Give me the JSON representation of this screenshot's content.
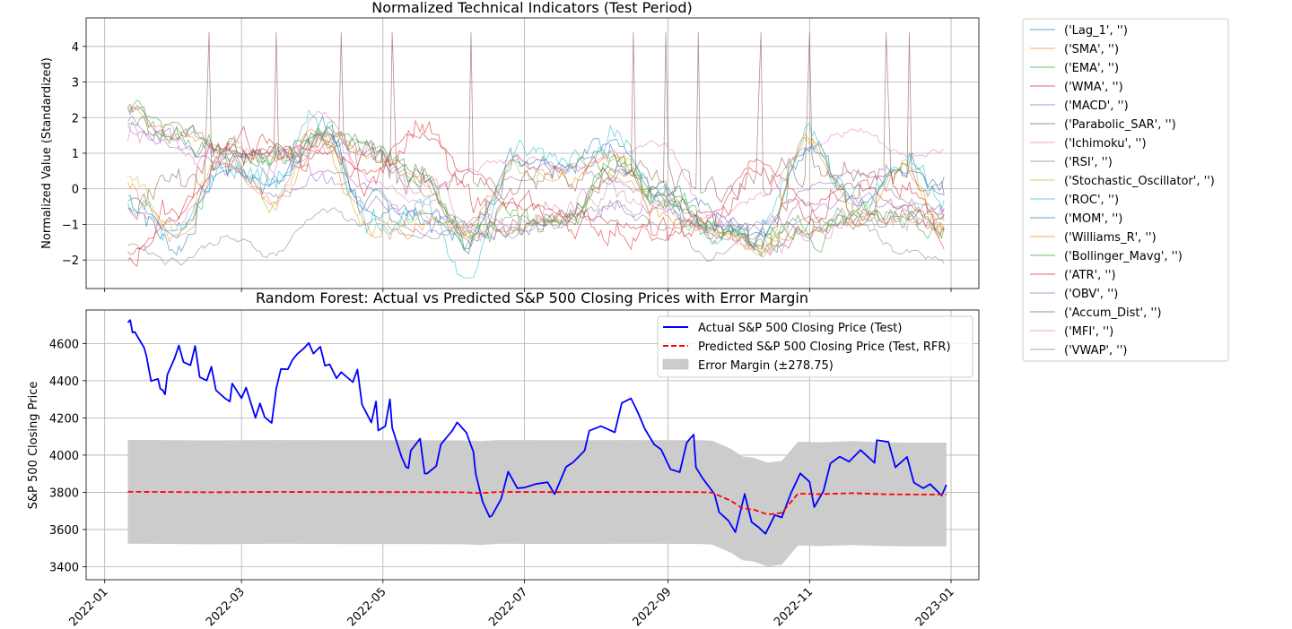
{
  "chart_data": [
    {
      "type": "line",
      "title": "Normalized Technical Indicators (Test Period)",
      "xlabel": "",
      "ylabel": "Normalized Value (Standardized)",
      "ylim": [
        -2.8,
        4.8
      ],
      "yticks": [
        -2,
        -1,
        0,
        1,
        2,
        3,
        4
      ],
      "ytick_labels": [
        "−2",
        "−1",
        "0",
        "1",
        "2",
        "3",
        "4"
      ],
      "xlim": [
        "2021-12-24",
        "2023-01-13"
      ],
      "grid": true,
      "legend_position": "outside right",
      "x": [
        "2022-01-11",
        "2022-02-01",
        "2022-02-22",
        "2022-03-15",
        "2022-04-05",
        "2022-04-26",
        "2022-05-17",
        "2022-06-07",
        "2022-06-28",
        "2022-07-19",
        "2022-08-09",
        "2022-08-30",
        "2022-09-20",
        "2022-10-11",
        "2022-11-01",
        "2022-11-22",
        "2022-12-13",
        "2022-12-30"
      ],
      "series": [
        {
          "name": "('Lag_1', '')",
          "color": "#1f77b4",
          "values": [
            -0.2,
            -1.6,
            0.8,
            0.2,
            1.7,
            -0.6,
            -0.8,
            -1.4,
            1.0,
            0.9,
            1.2,
            -0.3,
            -0.9,
            -1.4,
            1.3,
            -0.5,
            0.9,
            0.1
          ]
        },
        {
          "name": "('SMA', '')",
          "color": "#ff7f0e",
          "values": [
            2.2,
            1.5,
            1.2,
            0.8,
            1.7,
            1.0,
            0.2,
            -1.2,
            -1.0,
            -0.9,
            0.4,
            -0.2,
            -1.2,
            -1.6,
            -1.1,
            -0.8,
            -0.9,
            -1.1
          ]
        },
        {
          "name": "('EMA', '')",
          "color": "#2ca02c",
          "values": [
            2.3,
            1.6,
            1.3,
            0.9,
            1.6,
            1.0,
            0.3,
            -1.1,
            -1.0,
            -0.8,
            0.5,
            -0.1,
            -1.1,
            -1.5,
            -1.0,
            -0.7,
            -0.8,
            -1.0
          ]
        },
        {
          "name": "('WMA', '')",
          "color": "#d62728",
          "values": [
            -1.9,
            -0.5,
            1.4,
            1.1,
            0.8,
            0.2,
            1.9,
            -0.3,
            -0.6,
            -0.9,
            -1.1,
            -1.3,
            -1.0,
            0.4,
            -0.6,
            0.3,
            -0.2,
            -1.1
          ]
        },
        {
          "name": "('MACD', '')",
          "color": "#9467bd",
          "values": [
            1.7,
            1.2,
            0.6,
            -0.2,
            0.4,
            0.1,
            -1.2,
            -1.0,
            0.4,
            0.6,
            0.3,
            -0.5,
            -1.3,
            -1.0,
            0.1,
            0.5,
            -0.3,
            -0.6
          ]
        },
        {
          "name": "('Parabolic_SAR', '')",
          "color": "#8c564b",
          "values": [
            2.2,
            1.6,
            1.2,
            0.8,
            1.5,
            1.1,
            0.4,
            -1.3,
            -1.0,
            -0.9,
            0.4,
            0.0,
            -1.0,
            -1.7,
            -1.2,
            -0.8,
            -0.7,
            -1.0
          ]
        },
        {
          "name": "('Ichimoku', '')",
          "color": "#e377c2",
          "values": [
            1.6,
            1.3,
            1.0,
            0.7,
            1.4,
            0.9,
            0.0,
            -0.9,
            -0.8,
            -0.6,
            0.2,
            -0.3,
            -1.2,
            -1.5,
            -1.0,
            -0.6,
            -0.8,
            -0.9
          ]
        },
        {
          "name": "('RSI', '')",
          "color": "#7f7f7f",
          "values": [
            -1.5,
            -2.0,
            -1.4,
            -1.8,
            -0.6,
            -1.0,
            -1.4,
            -1.2,
            -0.9,
            -0.8,
            -0.5,
            -1.0,
            -1.9,
            -1.3,
            -0.9,
            -1.0,
            -1.8,
            -2.1
          ]
        },
        {
          "name": "('Stochastic_Oscillator', '')",
          "color": "#bcbd22",
          "values": [
            0.3,
            -1.2,
            1.0,
            -0.4,
            1.5,
            -1.1,
            -0.9,
            -1.2,
            0.6,
            0.4,
            1.1,
            -0.6,
            -1.2,
            -1.6,
            1.4,
            -0.7,
            0.7,
            -1.2
          ]
        },
        {
          "name": "('ROC', '')",
          "color": "#17becf",
          "values": [
            -0.2,
            -1.4,
            0.6,
            0.3,
            1.9,
            -0.8,
            -0.6,
            -2.3,
            0.9,
            1.0,
            1.5,
            -0.4,
            -1.5,
            -1.2,
            1.6,
            -0.2,
            0.8,
            0.0
          ]
        },
        {
          "name": "('MOM', '')",
          "color": "#1f77b4",
          "values": [
            -0.3,
            -1.3,
            0.5,
            0.1,
            1.6,
            -0.7,
            -0.7,
            -1.6,
            0.8,
            0.7,
            1.3,
            -0.3,
            -1.1,
            -1.3,
            1.2,
            -0.4,
            0.6,
            -0.1
          ]
        },
        {
          "name": "('Williams_R', '')",
          "color": "#ff7f0e",
          "values": [
            0.2,
            -1.5,
            0.9,
            -0.5,
            1.4,
            -1.2,
            -1.0,
            -1.3,
            0.7,
            0.3,
            1.0,
            -0.7,
            -1.3,
            -1.7,
            1.3,
            -0.8,
            0.6,
            -1.3
          ]
        },
        {
          "name": "('Bollinger_Mavg', '')",
          "color": "#2ca02c",
          "values": [
            2.1,
            1.5,
            1.2,
            0.8,
            1.6,
            1.0,
            0.3,
            -1.2,
            -1.0,
            -0.8,
            0.4,
            -0.1,
            -1.1,
            -1.6,
            -1.1,
            -0.8,
            -0.8,
            -1.0
          ]
        },
        {
          "name": "('ATR', '')",
          "color": "#d62728",
          "values": [
            -1.8,
            -0.8,
            0.9,
            1.2,
            1.0,
            0.5,
            1.6,
            0.4,
            -0.4,
            -0.7,
            -0.9,
            -1.4,
            -0.6,
            0.8,
            -0.4,
            0.0,
            -0.5,
            -1.2
          ]
        },
        {
          "name": "('OBV', '')",
          "color": "#9467bd",
          "values": [
            1.8,
            1.4,
            1.1,
            0.9,
            0.3,
            -0.3,
            -0.6,
            -1.2,
            -1.0,
            -0.7,
            -0.5,
            -0.6,
            -1.0,
            -1.1,
            -0.6,
            -0.3,
            -0.4,
            -0.7
          ]
        },
        {
          "name": "('Accum_Dist', '')",
          "color": "#8c564b",
          "values": [
            -0.3,
            0.2,
            0.6,
            1.0,
            1.3,
            0.9,
            0.2,
            0.1,
            0.3,
            0.5,
            0.6,
            0.3,
            0.0,
            0.2,
            0.5,
            0.6,
            0.3,
            0.1
          ]
        },
        {
          "name": "('MFI', '')",
          "color": "#e377c2",
          "values": [
            -0.6,
            -1.0,
            0.7,
            -0.3,
            2.2,
            0.3,
            -0.4,
            0.6,
            0.8,
            0.6,
            1.0,
            1.3,
            -0.8,
            -0.2,
            1.3,
            1.6,
            0.9,
            1.1
          ]
        },
        {
          "name": "('VWAP', '')",
          "color": "#7f7f7f",
          "values": [
            2.2,
            1.5,
            1.1,
            0.8,
            1.6,
            1.0,
            0.2,
            -1.2,
            -1.0,
            -0.8,
            0.4,
            -0.1,
            -1.2,
            -1.6,
            -1.1,
            -0.7,
            -0.8,
            -1.0
          ]
        }
      ],
      "spike_series": {
        "name": "('Accum_Dist', '')",
        "color": "#8c564b",
        "dates": [
          "2022-02-15",
          "2022-03-17",
          "2022-04-14",
          "2022-05-06",
          "2022-06-09",
          "2022-08-18",
          "2022-09-01",
          "2022-09-15",
          "2022-10-11",
          "2022-11-01",
          "2022-12-05",
          "2022-12-14"
        ],
        "values": [
          4.4,
          4.4,
          4.4,
          4.4,
          4.4,
          4.4,
          4.4,
          4.4,
          4.4,
          4.4,
          4.4,
          4.4
        ]
      },
      "legend_items": [
        "('Lag_1', '')",
        "('SMA', '')",
        "('EMA', '')",
        "('WMA', '')",
        "('MACD', '')",
        "('Parabolic_SAR', '')",
        "('Ichimoku', '')",
        "('RSI', '')",
        "('Stochastic_Oscillator', '')",
        "('ROC', '')",
        "('MOM', '')",
        "('Williams_R', '')",
        "('Bollinger_Mavg', '')",
        "('ATR', '')",
        "('OBV', '')",
        "('Accum_Dist', '')",
        "('MFI', '')",
        "('VWAP', '')"
      ]
    },
    {
      "type": "line",
      "title": "Random Forest: Actual vs Predicted S&P 500 Closing Prices with Error Margin",
      "xlabel": "",
      "ylabel": "S&P 500 Closing Price",
      "ylim": [
        3330,
        4780
      ],
      "yticks": [
        3400,
        3600,
        3800,
        4000,
        4200,
        4400,
        4600
      ],
      "xlim": [
        "2021-12-24",
        "2023-01-13"
      ],
      "xticks": [
        "2022-01-01",
        "2022-03-01",
        "2022-05-01",
        "2022-07-01",
        "2022-09-01",
        "2022-11-01",
        "2023-01-01"
      ],
      "xtick_labels": [
        "2022-01",
        "2022-03",
        "2022-05",
        "2022-07",
        "2022-09",
        "2022-11",
        "2023-01"
      ],
      "grid": true,
      "legend_position": "upper right",
      "error_margin": 278.75,
      "series": [
        {
          "name": "Actual S&P 500 Closing Price (Test)",
          "color": "#0000ff",
          "style": "solid",
          "x": [
            "2022-01-11",
            "2022-01-12",
            "2022-01-13",
            "2022-01-14",
            "2022-01-18",
            "2022-01-19",
            "2022-01-21",
            "2022-01-24",
            "2022-01-25",
            "2022-01-26",
            "2022-01-27",
            "2022-01-28",
            "2022-01-31",
            "2022-02-02",
            "2022-02-04",
            "2022-02-07",
            "2022-02-09",
            "2022-02-11",
            "2022-02-14",
            "2022-02-16",
            "2022-02-18",
            "2022-02-22",
            "2022-02-24",
            "2022-02-25",
            "2022-03-01",
            "2022-03-03",
            "2022-03-07",
            "2022-03-09",
            "2022-03-11",
            "2022-03-14",
            "2022-03-16",
            "2022-03-18",
            "2022-03-21",
            "2022-03-23",
            "2022-03-25",
            "2022-03-28",
            "2022-03-30",
            "2022-04-01",
            "2022-04-04",
            "2022-04-06",
            "2022-04-08",
            "2022-04-11",
            "2022-04-13",
            "2022-04-18",
            "2022-04-20",
            "2022-04-22",
            "2022-04-26",
            "2022-04-28",
            "2022-04-29",
            "2022-05-02",
            "2022-05-04",
            "2022-05-05",
            "2022-05-09",
            "2022-05-11",
            "2022-05-12",
            "2022-05-13",
            "2022-05-17",
            "2022-05-19",
            "2022-05-20",
            "2022-05-24",
            "2022-05-26",
            "2022-05-31",
            "2022-06-02",
            "2022-06-06",
            "2022-06-09",
            "2022-06-10",
            "2022-06-13",
            "2022-06-16",
            "2022-06-17",
            "2022-06-21",
            "2022-06-24",
            "2022-06-28",
            "2022-07-01",
            "2022-07-06",
            "2022-07-11",
            "2022-07-14",
            "2022-07-19",
            "2022-07-22",
            "2022-07-27",
            "2022-07-29",
            "2022-08-03",
            "2022-08-05",
            "2022-08-09",
            "2022-08-12",
            "2022-08-16",
            "2022-08-19",
            "2022-08-22",
            "2022-08-26",
            "2022-08-29",
            "2022-09-02",
            "2022-09-06",
            "2022-09-09",
            "2022-09-12",
            "2022-09-13",
            "2022-09-16",
            "2022-09-21",
            "2022-09-23",
            "2022-09-27",
            "2022-09-30",
            "2022-10-04",
            "2022-10-07",
            "2022-10-10",
            "2022-10-13",
            "2022-10-17",
            "2022-10-20",
            "2022-10-24",
            "2022-10-28",
            "2022-11-01",
            "2022-11-03",
            "2022-11-07",
            "2022-11-10",
            "2022-11-14",
            "2022-11-18",
            "2022-11-23",
            "2022-11-29",
            "2022-11-30",
            "2022-12-05",
            "2022-12-08",
            "2022-12-13",
            "2022-12-16",
            "2022-12-20",
            "2022-12-23",
            "2022-12-28",
            "2022-12-30"
          ],
          "values": [
            4713,
            4726,
            4659,
            4662,
            4577,
            4533,
            4398,
            4410,
            4356,
            4350,
            4326,
            4432,
            4516,
            4589,
            4500,
            4483,
            4587,
            4419,
            4401,
            4475,
            4349,
            4304,
            4288,
            4385,
            4306,
            4363,
            4201,
            4278,
            4204,
            4173,
            4358,
            4463,
            4461,
            4512,
            4543,
            4575,
            4603,
            4546,
            4583,
            4481,
            4488,
            4413,
            4446,
            4392,
            4460,
            4272,
            4175,
            4288,
            4132,
            4155,
            4300,
            4147,
            3991,
            3935,
            3930,
            4023,
            4088,
            3901,
            3901,
            3941,
            4058,
            4133,
            4176,
            4121,
            4018,
            3900,
            3749,
            3667,
            3675,
            3765,
            3911,
            3822,
            3825,
            3845,
            3854,
            3790,
            3937,
            3961,
            4024,
            4131,
            4155,
            4145,
            4122,
            4280,
            4305,
            4228,
            4140,
            4057,
            4030,
            3924,
            3908,
            4067,
            4110,
            3933,
            3873,
            3790,
            3693,
            3647,
            3586,
            3791,
            3640,
            3612,
            3577,
            3678,
            3665,
            3797,
            3902,
            3856,
            3720,
            3807,
            3956,
            3992,
            3965,
            4027,
            3958,
            4080,
            4071,
            3934,
            3990,
            3852,
            3822,
            3844,
            3783,
            3840
          ]
        },
        {
          "name": "Predicted S&P 500 Closing Price (Test, RFR)",
          "color": "#ff0000",
          "style": "dashed",
          "x": [
            "2022-01-11",
            "2022-02-15",
            "2022-03-15",
            "2022-04-15",
            "2022-05-15",
            "2022-06-05",
            "2022-06-12",
            "2022-06-20",
            "2022-07-15",
            "2022-08-15",
            "2022-09-15",
            "2022-09-20",
            "2022-09-28",
            "2022-10-03",
            "2022-10-08",
            "2022-10-14",
            "2022-10-20",
            "2022-10-27",
            "2022-11-05",
            "2022-11-20",
            "2022-12-01",
            "2022-12-15",
            "2022-12-30"
          ],
          "values": [
            3803,
            3800,
            3802,
            3801,
            3801,
            3800,
            3796,
            3802,
            3801,
            3802,
            3801,
            3798,
            3755,
            3714,
            3706,
            3680,
            3690,
            3793,
            3790,
            3796,
            3790,
            3788,
            3788
          ]
        },
        {
          "name": "Error Margin (±278.75)",
          "color": "#cccccc",
          "style": "fill",
          "band_low": [
            3524,
            3521,
            3523,
            3522,
            3522,
            3521,
            3517,
            3523,
            3522,
            3523,
            3522,
            3519,
            3476,
            3435,
            3427,
            3401,
            3411,
            3514,
            3511,
            3517,
            3511,
            3509,
            3509
          ],
          "band_high": [
            4082,
            4079,
            4081,
            4080,
            4080,
            4079,
            4075,
            4081,
            4080,
            4081,
            4080,
            4077,
            4034,
            3993,
            3985,
            3959,
            3969,
            4072,
            4069,
            4075,
            4069,
            4067,
            4067
          ]
        }
      ]
    }
  ]
}
